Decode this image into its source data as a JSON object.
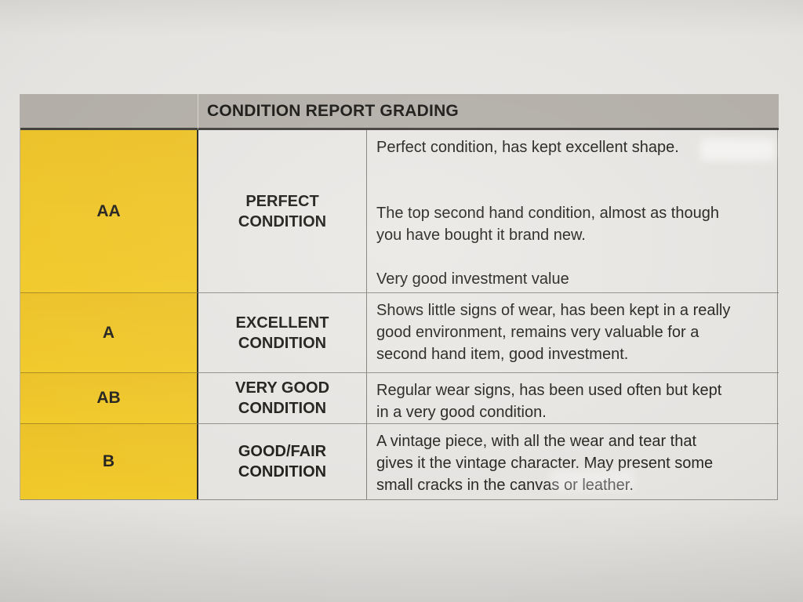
{
  "document": {
    "title": "CONDITION REPORT GRADING",
    "rows": [
      {
        "grade": "AA",
        "condition": "PERFECT CONDITION",
        "description": [
          "Perfect condition, has kept excellent shape.",
          "",
          "",
          "The top second hand condition, almost as though you have bought it brand new.",
          "",
          "Very good investment value"
        ]
      },
      {
        "grade": "A",
        "condition": "EXCELLENT CONDITION",
        "description": [
          "Shows little signs of wear, has been kept in a really good environment, remains very valuable for a second hand item, good investment."
        ]
      },
      {
        "grade": "AB",
        "condition": "VERY GOOD CONDITION",
        "description": [
          "Regular wear signs, has been used often but kept in a very good condition."
        ]
      },
      {
        "grade": "B",
        "condition": "GOOD/FAIR CONDITION",
        "description": [
          "A vintage piece, with all the wear and tear that gives it the vintage character. May present some small cracks in the canvas or leather."
        ]
      }
    ]
  },
  "colors": {
    "header_bg": "#b1ada6",
    "grade_bg": "#ecc126",
    "grade_bg_bottom": "#f1c928",
    "paper": "#e4e2df",
    "ink": "#1c1b19"
  }
}
